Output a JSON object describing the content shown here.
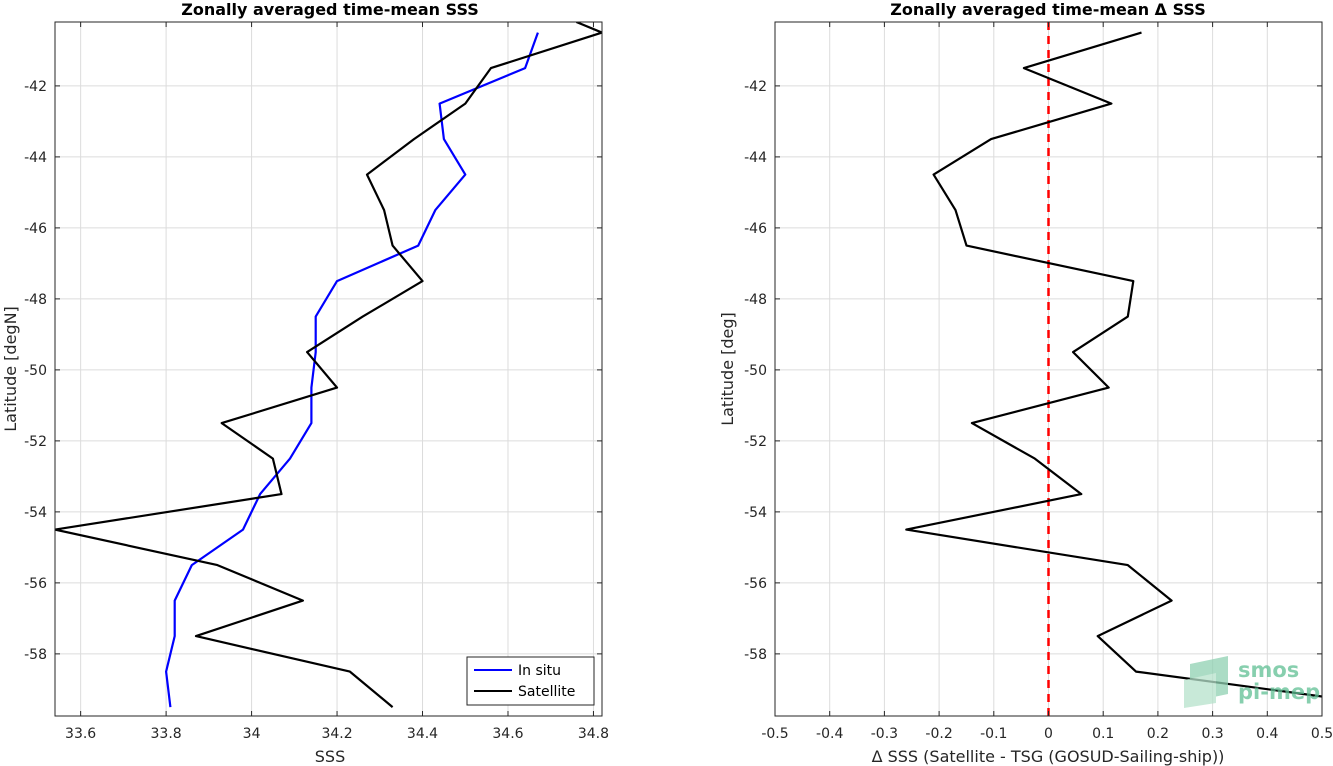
{
  "chart_data": [
    {
      "type": "line",
      "title": "Zonally averaged time-mean SSS",
      "xlabel": "SSS",
      "ylabel": "Latitude [degN]",
      "xlim": [
        33.54,
        34.82
      ],
      "ylim": [
        -59.75,
        -40.2
      ],
      "xticks": [
        33.6,
        33.8,
        34,
        34.2,
        34.4,
        34.6,
        34.8
      ],
      "xtick_labels": [
        "33.6",
        "33.8",
        "34",
        "34.2",
        "34.4",
        "34.6",
        "34.8"
      ],
      "yticks": [
        -58,
        -56,
        -54,
        -52,
        -50,
        -48,
        -46,
        -44,
        -42
      ],
      "ytick_labels": [
        "-58",
        "-56",
        "-54",
        "-52",
        "-50",
        "-48",
        "-46",
        "-44",
        "-42"
      ],
      "grid": true,
      "legend": "bottom-right",
      "series": [
        {
          "name": "In situ",
          "color": "#0000ff",
          "x": [
            34.67,
            34.64,
            34.44,
            34.45,
            34.5,
            34.43,
            34.39,
            34.2,
            34.15,
            34.15,
            34.14,
            34.14,
            34.09,
            34.02,
            33.98,
            33.86,
            33.82,
            33.82,
            33.8,
            33.81
          ],
          "y": [
            -40.5,
            -41.5,
            -42.5,
            -43.5,
            -44.5,
            -45.5,
            -46.5,
            -47.5,
            -48.5,
            -49.5,
            -50.5,
            -51.5,
            -52.5,
            -53.5,
            -54.5,
            -55.5,
            -56.5,
            -57.5,
            -58.5,
            -59.5
          ]
        },
        {
          "name": "Satellite",
          "color": "#000000",
          "x": [
            34.76,
            34.82,
            34.56,
            34.5,
            34.38,
            34.27,
            34.31,
            34.33,
            34.4,
            34.26,
            34.13,
            34.2,
            33.93,
            34.05,
            34.07,
            33.54,
            33.92,
            34.12,
            33.87,
            34.23,
            34.33
          ],
          "y": [
            -40.2,
            -40.5,
            -41.5,
            -42.5,
            -43.5,
            -44.5,
            -45.5,
            -46.5,
            -47.5,
            -48.5,
            -49.5,
            -50.5,
            -51.5,
            -52.5,
            -53.5,
            -54.5,
            -55.5,
            -56.5,
            -57.5,
            -58.5,
            -59.5
          ]
        }
      ]
    },
    {
      "type": "line",
      "title": "Zonally averaged time-mean Δ SSS",
      "xlabel": "Δ SSS (Satellite - TSG (GOSUD-Sailing-ship))",
      "ylabel": "Latitude [deg]",
      "xlim": [
        -0.5,
        0.5
      ],
      "ylim": [
        -59.75,
        -40.2
      ],
      "xticks": [
        -0.5,
        -0.4,
        -0.3,
        -0.2,
        -0.1,
        0,
        0.1,
        0.2,
        0.3,
        0.4,
        0.5
      ],
      "xtick_labels": [
        "-0.5",
        "-0.4",
        "-0.3",
        "-0.2",
        "-0.1",
        "0",
        "0.1",
        "0.2",
        "0.3",
        "0.4",
        "0.5"
      ],
      "yticks": [
        -58,
        -56,
        -54,
        -52,
        -50,
        -48,
        -46,
        -44,
        -42
      ],
      "ytick_labels": [
        "-58",
        "-56",
        "-54",
        "-52",
        "-50",
        "-48",
        "-46",
        "-44",
        "-42"
      ],
      "grid": true,
      "reference_line": {
        "x": 0,
        "color": "#ff0000",
        "style": "dashed"
      },
      "series": [
        {
          "color": "#000000",
          "x": [
            0.17,
            -0.045,
            0.115,
            -0.105,
            -0.21,
            -0.17,
            -0.15,
            0.155,
            0.145,
            0.045,
            0.11,
            -0.14,
            -0.025,
            0.06,
            -0.26,
            0.145,
            0.225,
            0.09,
            0.16,
            0.5
          ],
          "y": [
            -40.5,
            -41.5,
            -42.5,
            -43.5,
            -44.5,
            -45.5,
            -46.5,
            -47.5,
            -48.5,
            -49.5,
            -50.5,
            -51.5,
            -52.5,
            -53.5,
            -54.5,
            -55.5,
            -56.5,
            -57.5,
            -58.5,
            -59.2
          ]
        }
      ]
    }
  ],
  "logo": {
    "line1": "smos",
    "line2": "pi-mep",
    "color": "#5fbf94"
  }
}
